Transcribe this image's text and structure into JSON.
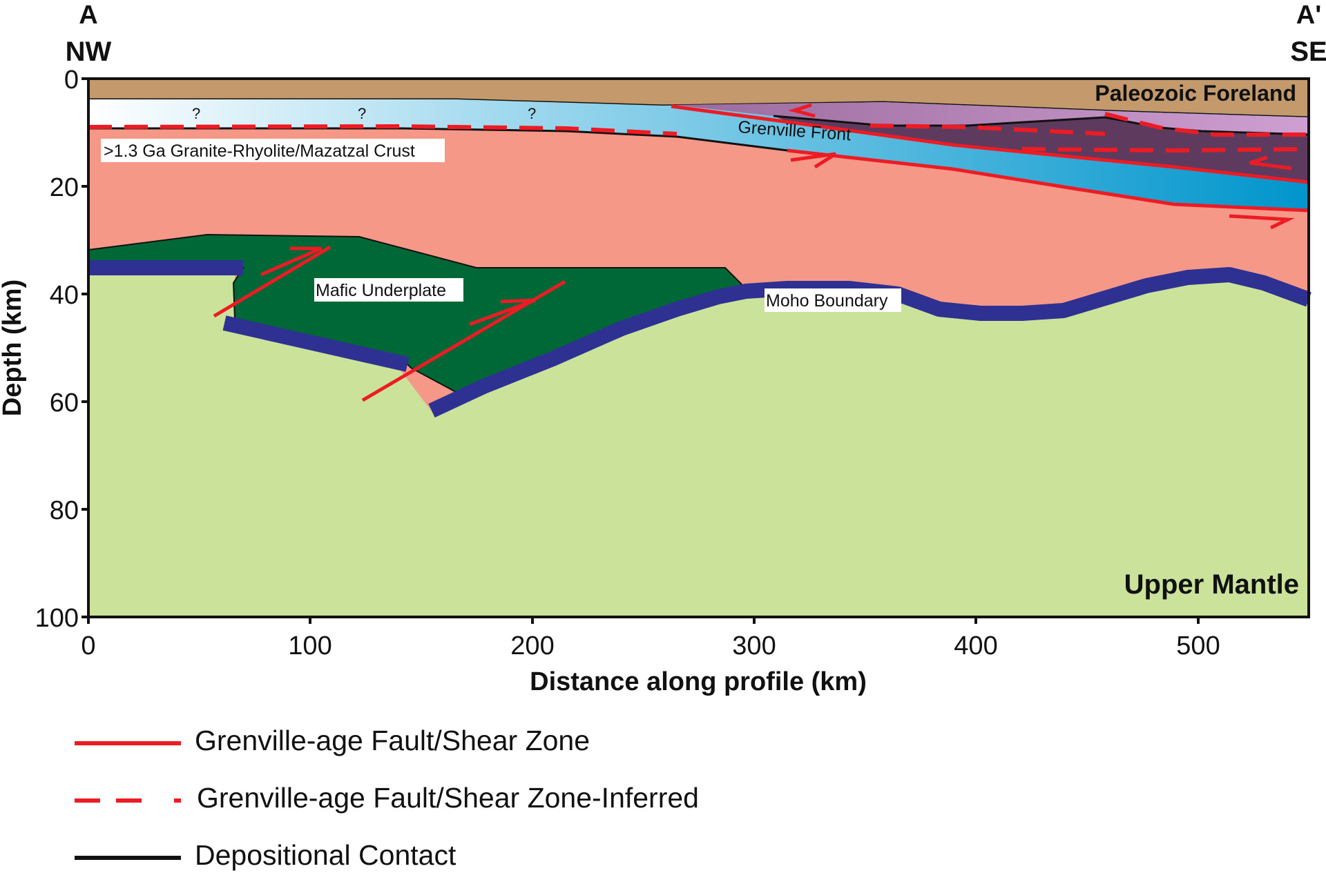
{
  "profile": {
    "start_label": "A",
    "start_direction": "NW",
    "end_label": "A'",
    "end_direction": "SE"
  },
  "axes": {
    "xlabel": "Distance along profile (km)",
    "ylabel": "Depth (km)",
    "xticks": [
      "0",
      "100",
      "200",
      "300",
      "400",
      "500"
    ],
    "yticks": [
      "0",
      "20",
      "40",
      "60",
      "80",
      "100"
    ],
    "xlim": [
      0,
      550
    ],
    "ylim": [
      0,
      100
    ]
  },
  "units": {
    "paleozoic": "Paleozoic Foreland",
    "crust": ">1.3 Ga Granite-Rhyolite/Mazatzal Crust",
    "grenville_front": "Grenville Front",
    "underplate": "Mafic Underplate",
    "moho": "Moho Boundary",
    "mantle": "Upper Mantle",
    "unknown_marks": [
      "?",
      "?",
      "?"
    ]
  },
  "colors": {
    "paleozoic": "#c49a6c",
    "crust": "#f59887",
    "underplate": "#006837",
    "mantle": "#cae29a",
    "moho": "#2e3192",
    "grenville_light": "#ffffff",
    "grenville_dark": "#0095cc",
    "purple_upper": "#9b6b9e",
    "purple_lower": "#5e3a5e",
    "fault": "#ed1c24",
    "contact": "#111111"
  },
  "legend": [
    {
      "label": "Grenville-age Fault/Shear Zone",
      "style": "solid-red"
    },
    {
      "label": "Grenville-age Fault/Shear Zone-Inferred",
      "style": "dashed-red"
    },
    {
      "label": "Depositional Contact",
      "style": "solid-black"
    }
  ]
}
